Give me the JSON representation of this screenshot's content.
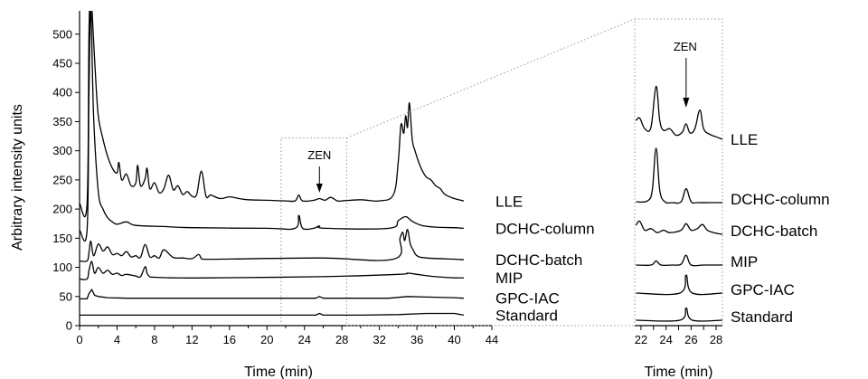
{
  "chart_data": [
    {
      "type": "line",
      "xlabel": "Time (min)",
      "ylabel": "Arbitrary intensity units",
      "xlim": [
        0,
        44
      ],
      "ylim": [
        0,
        540
      ],
      "x_ticks": [
        0,
        2,
        4,
        6,
        8,
        10,
        12,
        14,
        16,
        18,
        20,
        22,
        24,
        26,
        28,
        30,
        32,
        34,
        36,
        38,
        40,
        42,
        44
      ],
      "x_tick_labels": [
        "0",
        "",
        "4",
        "",
        "8",
        "",
        "12",
        "",
        "16",
        "",
        "20",
        "",
        "24",
        "",
        "28",
        "",
        "32",
        "",
        "36",
        "",
        "40",
        "",
        "44"
      ],
      "y_ticks": [
        0,
        50,
        100,
        150,
        200,
        250,
        300,
        350,
        400,
        450,
        500
      ],
      "y_tick_labels": [
        "0",
        "50",
        "100",
        "150",
        "200",
        "250",
        "300",
        "350",
        "400",
        "450",
        "500"
      ],
      "annotation": {
        "text": "ZEN",
        "x": 25.6
      },
      "zoom_region": {
        "x": [
          21.5,
          28.5
        ]
      },
      "series": [
        {
          "name": "LLE",
          "baseline": 213,
          "start": 210,
          "x": [
            0,
            0.8,
            1.0,
            1.2,
            1.4,
            1.7,
            2.0,
            2.5,
            3.0,
            3.5,
            4.0,
            4.2,
            4.5,
            5.0,
            5.5,
            6.0,
            6.2,
            6.5,
            7.0,
            7.2,
            7.5,
            8.0,
            8.5,
            9.0,
            9.5,
            10.0,
            10.5,
            11.0,
            11.5,
            12.0,
            12.5,
            13.0,
            13.5,
            14.0,
            15.0,
            16.0,
            17.0,
            18.0,
            20.0,
            22.0,
            23.0,
            23.4,
            23.8,
            25.0,
            25.6,
            26.2,
            26.8,
            27.5,
            28.0,
            30.0,
            32.0,
            33.5,
            34.0,
            34.3,
            34.6,
            34.8,
            35.0,
            35.2,
            35.5,
            35.8,
            36.2,
            36.6,
            37.0,
            37.5,
            38.0,
            38.5,
            39.0,
            40.0,
            41.0
          ],
          "y": [
            210,
            210,
            500,
            580,
            520,
            430,
            360,
            320,
            290,
            270,
            262,
            280,
            250,
            260,
            240,
            245,
            275,
            240,
            252,
            270,
            235,
            245,
            228,
            235,
            258,
            233,
            240,
            225,
            230,
            222,
            225,
            265,
            222,
            224,
            218,
            221,
            218,
            216,
            215,
            214,
            214,
            224,
            214,
            215,
            218,
            215,
            220,
            214,
            214,
            216,
            214,
            225,
            280,
            345,
            330,
            360,
            340,
            382,
            320,
            300,
            280,
            265,
            255,
            250,
            240,
            235,
            225,
            218,
            214
          ]
        },
        {
          "name": "DCHC-column",
          "baseline": 167,
          "start": 164,
          "x": [
            0,
            0.8,
            1.0,
            1.2,
            1.5,
            2.0,
            2.5,
            3.0,
            3.5,
            4.0,
            5.0,
            6.0,
            9.0,
            12.0,
            20.0,
            23.0,
            23.4,
            23.8,
            25.0,
            25.6,
            26.2,
            33.0,
            34.0,
            34.8,
            35.5,
            36.5,
            38.0,
            40.0,
            41.0
          ],
          "y": [
            164,
            164,
            400,
            540,
            360,
            230,
            200,
            185,
            178,
            174,
            178,
            172,
            170,
            168,
            167,
            167,
            189,
            167,
            167,
            171,
            167,
            167,
            180,
            187,
            179,
            172,
            169,
            168,
            167
          ]
        },
        {
          "name": "DCHC-batch",
          "baseline": 113,
          "start": 111,
          "x": [
            0,
            0.8,
            1.0,
            1.2,
            1.5,
            2.0,
            2.5,
            3.0,
            3.5,
            4.0,
            4.5,
            5.0,
            5.5,
            6.0,
            6.5,
            7.0,
            7.5,
            8.0,
            8.5,
            9.0,
            10.0,
            11.0,
            12.0,
            12.7,
            13.0,
            13.3,
            15.0,
            25.6,
            33.5,
            34.2,
            34.5,
            34.7,
            35.0,
            35.3,
            35.6,
            36.0,
            37.0,
            40.0,
            41.0
          ],
          "y": [
            111,
            111,
            125,
            145,
            120,
            140,
            128,
            135,
            122,
            124,
            120,
            127,
            118,
            120,
            117,
            139,
            118,
            120,
            116,
            130,
            117,
            116,
            115,
            122,
            115,
            114,
            114,
            116,
            114,
            150,
            160,
            146,
            165,
            140,
            130,
            120,
            116,
            114,
            113
          ]
        },
        {
          "name": "MIP",
          "baseline": 82,
          "start": 80,
          "x": [
            0,
            0.8,
            1.0,
            1.3,
            1.6,
            2.0,
            2.5,
            3.0,
            3.5,
            4.0,
            4.5,
            5.0,
            6.0,
            6.5,
            7.0,
            7.2,
            7.5,
            8.0,
            10.0,
            14.0,
            25.6,
            34.0,
            35.0,
            36.0,
            38.0,
            40.0,
            41.0
          ],
          "y": [
            80,
            80,
            95,
            110,
            90,
            100,
            90,
            95,
            88,
            90,
            86,
            88,
            85,
            84,
            101,
            90,
            84,
            83,
            82,
            82,
            84,
            88,
            90,
            88,
            84,
            82,
            82
          ]
        },
        {
          "name": "GPC-IAC",
          "baseline": 47,
          "start": 46,
          "x": [
            0,
            0.8,
            1.0,
            1.3,
            1.6,
            2.0,
            3.0,
            5.0,
            10.0,
            25.2,
            25.6,
            26.0,
            33.0,
            35.0,
            37.0,
            40.0,
            41.0
          ],
          "y": [
            46,
            46,
            55,
            62,
            52,
            50,
            48,
            47,
            47,
            47,
            50,
            47,
            47,
            50,
            49,
            48,
            47
          ],
          "curve": "linear"
        },
        {
          "name": "Standard",
          "baseline": 18,
          "start": 18,
          "x": [
            0,
            20.0,
            25.2,
            25.6,
            26.0,
            30.0,
            34.0,
            37.0,
            40.0,
            41.0
          ],
          "y": [
            18,
            18,
            18,
            21,
            18,
            18,
            19,
            21,
            21,
            18
          ],
          "curve": "linear"
        }
      ]
    },
    {
      "type": "line",
      "xlabel": "Time (min)",
      "xlim": [
        21.5,
        28.5
      ],
      "x_ticks": [
        22,
        23,
        24,
        25,
        26,
        27,
        28
      ],
      "x_tick_labels": [
        "22",
        "",
        "24",
        "",
        "26",
        "",
        "28"
      ],
      "annotation": {
        "text": "ZEN",
        "x": 25.6
      },
      "series": [
        {
          "name": "LLE",
          "x": [
            21.6,
            21.9,
            22.3,
            22.8,
            23.2,
            23.5,
            23.8,
            24.3,
            24.8,
            25.3,
            25.6,
            25.9,
            26.3,
            26.7,
            27.0,
            27.5,
            28.0,
            28.5
          ],
          "y": [
            120,
            123,
            110,
            112,
            162,
            120,
            108,
            110,
            102,
            106,
            116,
            105,
            110,
            133,
            110,
            103,
            100,
            97
          ]
        },
        {
          "name": "DCHC-column",
          "x": [
            21.6,
            22.5,
            22.9,
            23.2,
            23.5,
            23.9,
            24.5,
            25.2,
            25.6,
            26.0,
            26.5,
            27.5,
            28.5
          ],
          "y": [
            96,
            97,
            110,
            162,
            110,
            96,
            95,
            96,
            112,
            96,
            95,
            95,
            95
          ]
        },
        {
          "name": "DCHC-batch",
          "x": [
            21.6,
            21.9,
            22.3,
            22.8,
            23.3,
            23.8,
            24.3,
            25.2,
            25.6,
            26.0,
            26.5,
            26.9,
            27.3,
            27.8,
            28.5
          ],
          "y": [
            108,
            113,
            102,
            104,
            99,
            102,
            99,
            102,
            110,
            102,
            104,
            109,
            102,
            99,
            97
          ]
        },
        {
          "name": "MIP",
          "x": [
            21.6,
            22.8,
            23.2,
            23.6,
            24.5,
            25.2,
            25.6,
            26.0,
            27.0,
            28.5
          ],
          "y": [
            96,
            96,
            101,
            96,
            96,
            97,
            108,
            96,
            96,
            96
          ]
        },
        {
          "name": "GPC-IAC",
          "x": [
            21.6,
            25.1,
            25.6,
            26.1,
            28.5
          ],
          "y": [
            97,
            97,
            119,
            97,
            97
          ]
        },
        {
          "name": "Standard",
          "x": [
            21.6,
            25.1,
            25.6,
            26.1,
            28.5
          ],
          "y": [
            97,
            97,
            112,
            97,
            97
          ]
        }
      ]
    }
  ]
}
